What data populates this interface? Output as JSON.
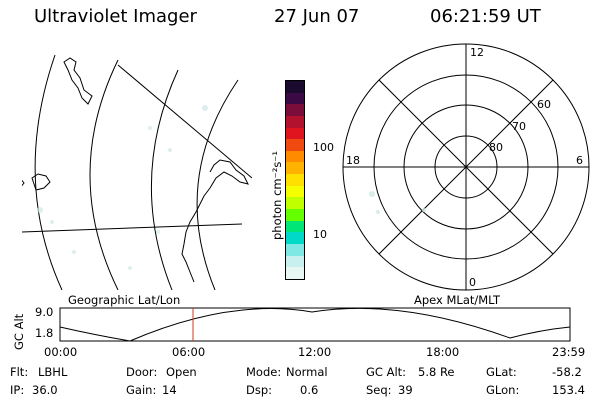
{
  "header": {
    "instrument": "Ultraviolet Imager",
    "date": "27 Jun 07",
    "time": "06:21:59 UT"
  },
  "colorbar": {
    "unit_label": "photon cm⁻²s⁻¹",
    "tick_labels": [
      "100",
      "10"
    ],
    "colors": [
      "#1a0a2e",
      "#3b0a45",
      "#7a0d3a",
      "#b3122e",
      "#e0141e",
      "#f04a10",
      "#ff8c00",
      "#ffb300",
      "#ffe000",
      "#f5ff00",
      "#bfff00",
      "#66ff00",
      "#00e676",
      "#00d8c8",
      "#7fe8e4",
      "#c8f0ee",
      "#e8f6f4"
    ]
  },
  "polar_plot": {
    "mlt_labels": {
      "top": "12",
      "left": "18",
      "right": "6",
      "bottom": "0"
    },
    "lat_labels": [
      "60",
      "70",
      "80"
    ]
  },
  "timeline": {
    "ylabel": "GC Alt",
    "y_ticks": [
      "9.0",
      "1.8"
    ],
    "left_title": "Geographic Lat/Lon",
    "right_title": "Apex MLat/MLT",
    "x_ticks": [
      "00:00",
      "06:00",
      "12:00",
      "18:00",
      "23:59"
    ],
    "marker_color": "#d23c1e"
  },
  "status": [
    {
      "label": "Flt:",
      "value": "LBHL"
    },
    {
      "label": "Door:",
      "value": "Open"
    },
    {
      "label": "Mode:",
      "value": "Normal"
    },
    {
      "label": "GC Alt:",
      "value": "5.8 Re"
    },
    {
      "label": "GLat:",
      "value": "-58.2"
    },
    {
      "label": "IP:",
      "value": "36.0"
    },
    {
      "label": "Gain:",
      "value": "14"
    },
    {
      "label": "Dsp:",
      "value": "0.6"
    },
    {
      "label": "Seq:",
      "value": "39"
    },
    {
      "label": "GLon:",
      "value": "153.4"
    }
  ]
}
